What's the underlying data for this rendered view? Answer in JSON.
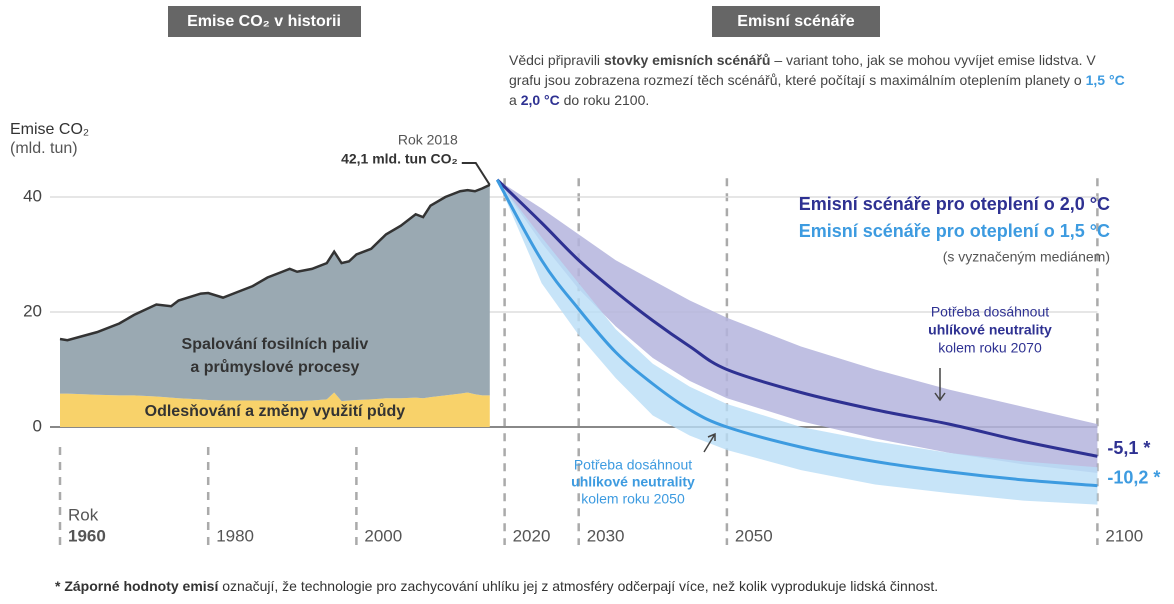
{
  "chart_data": {
    "type": "area",
    "headers": [
      "Emise CO₂ v historii",
      "Emisní scénáře"
    ],
    "intro": [
      "Vědci připravili ",
      "stovky emisních scénářů",
      " – variant toho, jak se mohou vyvíjet emise lidstva. V grafu jsou zobrazena rozmezí těch scénářů, které počítají s maximálním oteplením planety o ",
      "1,5 °C",
      " a ",
      "2,0 °C",
      " do roku 2100."
    ],
    "ylabel": [
      "Emise CO₂",
      "(mld. tun)"
    ],
    "xlabel": "Rok",
    "xlim": [
      1960,
      2100
    ],
    "xticks": [
      1960,
      1980,
      2000,
      2020,
      2030,
      2050,
      2100
    ],
    "ylim": [
      -14,
      45
    ],
    "yticks": [
      0,
      20,
      40
    ],
    "grid": true,
    "history": {
      "x": [
        1960,
        1961,
        1965,
        1968,
        1970,
        1973,
        1975,
        1976,
        1979,
        1980,
        1982,
        1984,
        1986,
        1988,
        1990,
        1991,
        1992,
        1994,
        1996,
        1997,
        1998,
        1999,
        2000,
        2002,
        2004,
        2006,
        2008,
        2009,
        2010,
        2012,
        2014,
        2015,
        2016,
        2017,
        2018
      ],
      "series": [
        {
          "name": "Odlesňování a změny využití půdy",
          "color": "#f8d26a",
          "values": [
            5.8,
            5.8,
            5.6,
            5.5,
            5.5,
            5.3,
            5.1,
            5,
            4.8,
            4.7,
            4.6,
            4.6,
            4.6,
            4.6,
            4.5,
            4.5,
            4.5,
            4.6,
            4.8,
            6,
            4.5,
            4.6,
            4.7,
            4.8,
            5,
            5,
            5.1,
            5,
            5.2,
            5.5,
            5.8,
            6,
            5.7,
            5.5,
            5.5
          ]
        },
        {
          "name": [
            "Spalování fosilních paliv",
            "a průmyslové procesy"
          ],
          "color": "#9aa9b2",
          "values": [
            9.5,
            9.3,
            10.9,
            12.5,
            14,
            16,
            15.9,
            17,
            18.4,
            18.6,
            17.9,
            18.9,
            19.9,
            21.4,
            22.5,
            23,
            22.5,
            22.9,
            23.7,
            24.5,
            24,
            24.2,
            25.3,
            26.2,
            28.5,
            30,
            31.9,
            31.5,
            33.3,
            34.5,
            35.2,
            35.2,
            35.3,
            36,
            36.6
          ]
        }
      ],
      "annotation": [
        "Rok 2018",
        "42,1 mld. tun CO₂"
      ]
    },
    "scenarios": {
      "x": [
        2019,
        2025,
        2030,
        2035,
        2040,
        2045,
        2050,
        2060,
        2070,
        2080,
        2090,
        2100
      ],
      "series": [
        {
          "name": "Emisní scénáře pro oteplení o 2,0 °C",
          "color": "#2e3192",
          "band_color": "#b4b4dd",
          "upper": [
            43,
            38,
            33.5,
            29,
            25.5,
            22,
            19,
            14,
            10,
            6.5,
            3.5,
            0.5
          ],
          "values": [
            43,
            35.5,
            29,
            23.5,
            18.5,
            14,
            10,
            6,
            3,
            0.5,
            -2.5,
            -5.1
          ],
          "lower": [
            43,
            32,
            24,
            17.5,
            12,
            8,
            5,
            1,
            -2,
            -4.5,
            -6.5,
            -8
          ],
          "end_label": "-5,1 *",
          "note": [
            "Potřeba dosáhnout",
            "uhlíkové neutrality",
            "kolem roku 2070"
          ]
        },
        {
          "name": "Emisní scénáře pro oteplení o 1,5 °C",
          "color": "#3d9be0",
          "band_color": "#b9ddf6",
          "upper": [
            43,
            33,
            25,
            17,
            11,
            7,
            4,
            0,
            -2.5,
            -4.5,
            -6,
            -7
          ],
          "values": [
            43,
            29,
            20.5,
            13,
            7.5,
            3,
            0,
            -3.5,
            -6,
            -7.8,
            -9.2,
            -10.2
          ],
          "lower": [
            43,
            25,
            16,
            8.5,
            2,
            -1.5,
            -4,
            -7.5,
            -10,
            -11.5,
            -12.8,
            -13.5
          ],
          "end_label": "-10,2 *",
          "note": [
            "Potřeba dosáhnout",
            "uhlíkové neutrality",
            "kolem roku 2050"
          ]
        }
      ],
      "legend_note": "(s vyznačeným mediánem)"
    },
    "footnote": [
      "* Záporné hodnoty emisí",
      " označují, že technologie pro zachycování uhlíku jej z atmosféry odčerpají více, než kolik vyprodukuje lidská činnost."
    ]
  }
}
